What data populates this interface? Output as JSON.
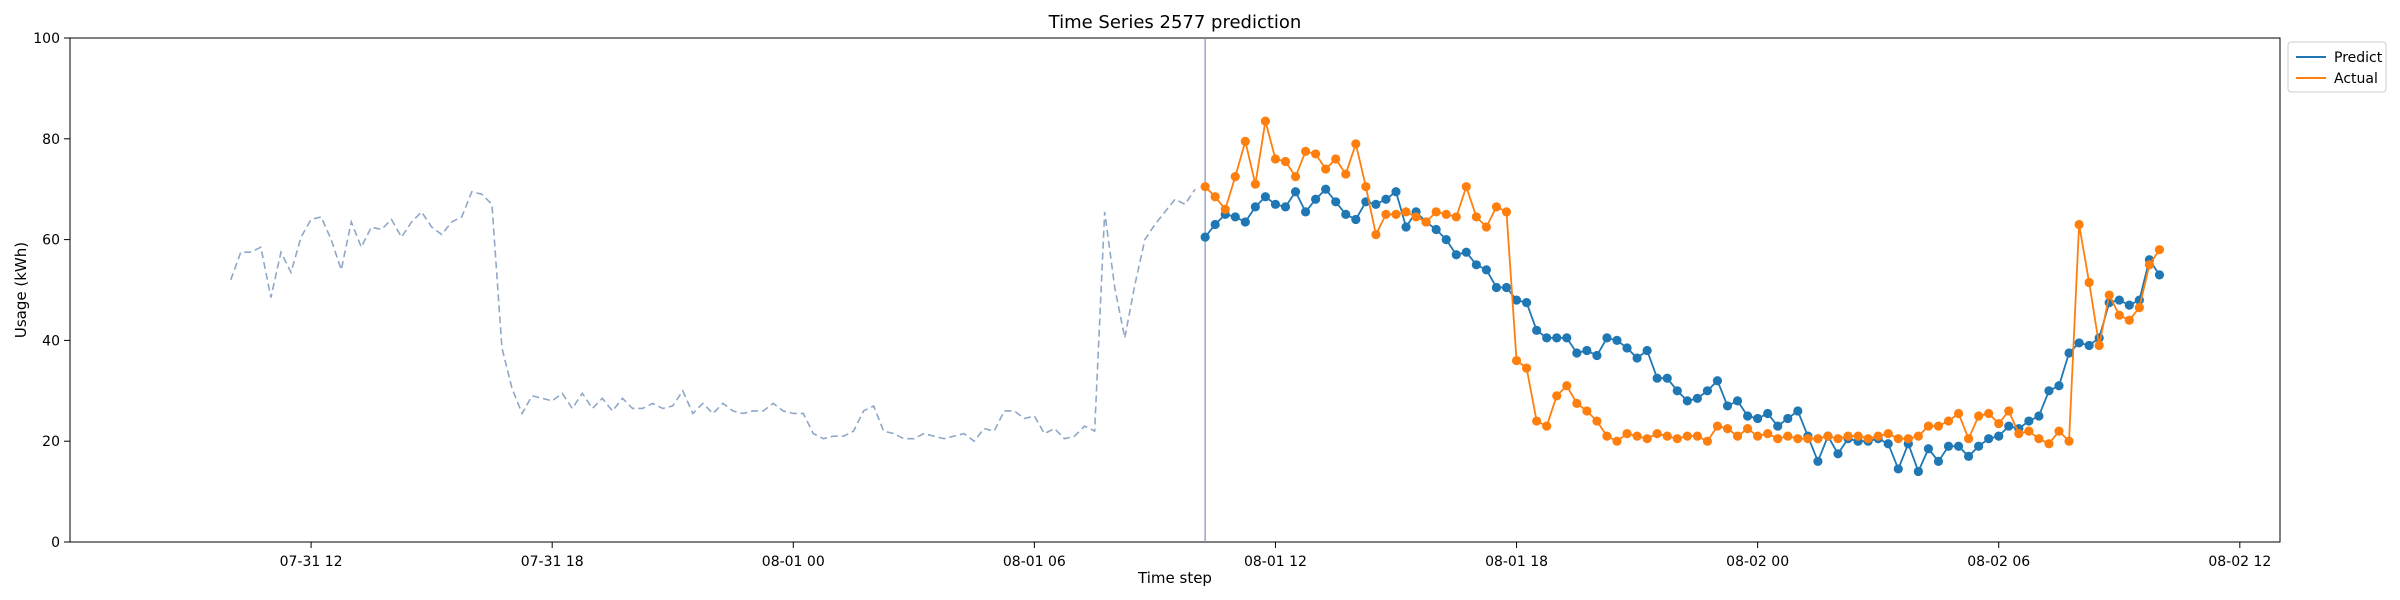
{
  "chart_data": {
    "type": "line",
    "title": "Time Series 2577 prediction",
    "xlabel": "Time step",
    "ylabel": "Usage (kWh)",
    "ylim": [
      0,
      100
    ],
    "yticks": [
      0,
      20,
      40,
      60,
      80,
      100
    ],
    "xlim": [
      "2024-07-31T06:00",
      "2024-08-02T13:00"
    ],
    "xticks": [
      {
        "t": "2024-07-31T12:00",
        "label": "07-31 12"
      },
      {
        "t": "2024-07-31T18:00",
        "label": "07-31 18"
      },
      {
        "t": "2024-08-01T00:00",
        "label": "08-01 00"
      },
      {
        "t": "2024-08-01T06:00",
        "label": "08-01 06"
      },
      {
        "t": "2024-08-01T12:00",
        "label": "08-01 12"
      },
      {
        "t": "2024-08-01T18:00",
        "label": "08-01 18"
      },
      {
        "t": "2024-08-02T00:00",
        "label": "08-02 00"
      },
      {
        "t": "2024-08-02T06:00",
        "label": "08-02 06"
      },
      {
        "t": "2024-08-02T12:00",
        "label": "08-02 12"
      }
    ],
    "grid": false,
    "legend": "top-right",
    "history_start": "2024-07-31T10:00",
    "forecast_start": "2024-08-01T10:15",
    "interval_minutes": 15,
    "history": {
      "color": "#8fa8c8",
      "values": [
        52,
        57.5,
        57.5,
        58.5,
        48.5,
        57.5,
        53.5,
        60.5,
        64,
        64.5,
        60,
        54,
        63.5,
        58.5,
        62.5,
        62,
        64,
        60.5,
        63.5,
        65.5,
        62.5,
        61,
        63.5,
        64.5,
        69.5,
        69,
        67,
        38.5,
        30.5,
        25.5,
        29,
        28.5,
        28,
        29.5,
        26.5,
        29.5,
        26.5,
        28.5,
        26,
        28.5,
        26.5,
        26.5,
        27.5,
        26.5,
        27,
        30,
        25.5,
        27.5,
        25.5,
        27.5,
        26,
        25.5,
        26,
        26,
        27.5,
        26,
        25.5,
        25.5,
        21.5,
        20.5,
        21,
        21,
        22,
        26,
        27,
        22,
        21.5,
        20.5,
        20.5,
        21.5,
        21,
        20.5,
        21,
        21.5,
        20,
        22.5,
        22,
        26,
        26,
        24.5,
        25,
        21.5,
        22.5,
        20.5,
        21,
        23,
        22,
        65.5,
        50.5,
        40.5,
        51,
        60,
        63,
        65.5,
        68,
        67,
        70
      ]
    },
    "series": [
      {
        "name": "Predict",
        "color": "#1f77b4",
        "values": [
          60.5,
          63,
          65,
          64.5,
          63.5,
          66.5,
          68.5,
          67,
          66.5,
          69.5,
          65.5,
          68,
          70,
          67.5,
          65,
          64,
          67.5,
          67,
          68,
          69.5,
          62.5,
          65.5,
          63.5,
          62,
          60,
          57,
          57.5,
          55,
          54,
          50.5,
          50.5,
          48,
          47.5,
          42,
          40.5,
          40.5,
          40.5,
          37.5,
          38,
          37,
          40.5,
          40,
          38.5,
          36.5,
          38,
          32.5,
          32.5,
          30,
          28,
          28.5,
          30,
          32,
          27,
          28,
          25,
          24.5,
          25.5,
          23,
          24.5,
          26,
          21,
          16,
          21,
          17.5,
          20.5,
          20,
          20,
          20.5,
          19.5,
          14.5,
          19.5,
          14,
          18.5,
          16,
          19,
          19,
          17,
          19,
          20.5,
          21,
          23,
          22.5,
          24,
          25,
          30,
          31,
          37.5,
          39.5,
          39,
          40.5,
          47.5,
          48,
          47,
          48,
          56,
          53
        ]
      },
      {
        "name": "Actual",
        "color": "#ff7f0e",
        "values": [
          70.5,
          68.5,
          66,
          72.5,
          79.5,
          71,
          83.5,
          76,
          75.5,
          72.5,
          77.5,
          77,
          74,
          76,
          73,
          79,
          70.5,
          61,
          65,
          65,
          65.5,
          64.5,
          63.5,
          65.5,
          65,
          64.5,
          70.5,
          64.5,
          62.5,
          66.5,
          65.5,
          36,
          34.5,
          24,
          23,
          29,
          31,
          27.5,
          26,
          24,
          21,
          20,
          21.5,
          21,
          20.5,
          21.5,
          21,
          20.5,
          21,
          21,
          20,
          23,
          22.5,
          21,
          22.5,
          21,
          21.5,
          20.5,
          21,
          20.5,
          20.5,
          20.5,
          21,
          20.5,
          21,
          21,
          20.5,
          21,
          21.5,
          20.5,
          20.5,
          21,
          23,
          23,
          24,
          25.5,
          20.5,
          25,
          25.5,
          23.5,
          26,
          21.5,
          22,
          20.5,
          19.5,
          22,
          20,
          63,
          51.5,
          39,
          49,
          45,
          44,
          46.5,
          55,
          58
        ]
      }
    ]
  }
}
